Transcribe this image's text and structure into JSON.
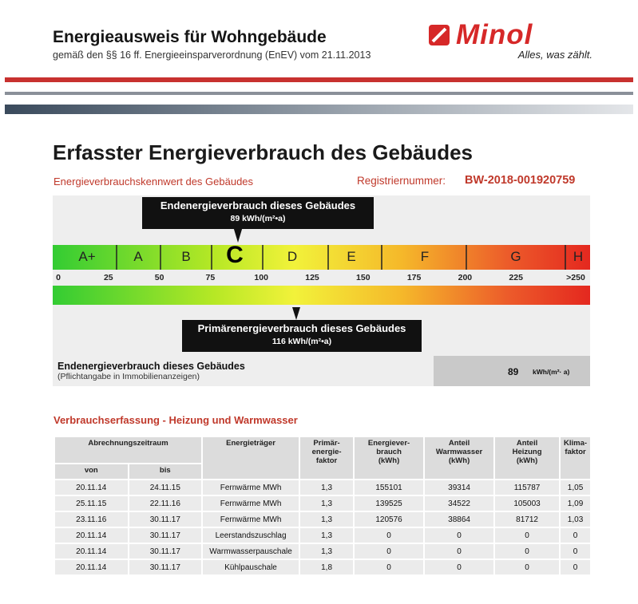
{
  "header": {
    "title": "Energieausweis für Wohngebäude",
    "subtitle": "gemäß den §§ 16 ff. Energieeinsparverordnung (EnEV) vom 21.11.2013"
  },
  "logo": {
    "wordmark": "Minol",
    "slogan": "Alles, was zählt.",
    "color": "#d62828"
  },
  "section": {
    "title": "Erfasster Energieverbrauch des Gebäudes",
    "kennwert_label": "Energieverbrauchskennwert des Gebäudes",
    "registration_label": "Registriernummer:",
    "registration_number": "BW-2018-001920759"
  },
  "scale": {
    "min": 0,
    "max": 250,
    "grades": [
      {
        "label": "A+",
        "from": 0,
        "to": 30
      },
      {
        "label": "A",
        "from": 30,
        "to": 50
      },
      {
        "label": "B",
        "from": 50,
        "to": 75
      },
      {
        "label": "C",
        "from": 75,
        "to": 100
      },
      {
        "label": "D",
        "from": 100,
        "to": 130
      },
      {
        "label": "E",
        "from": 130,
        "to": 160
      },
      {
        "label": "F",
        "from": 160,
        "to": 200
      },
      {
        "label": "G",
        "from": 200,
        "to": 250
      },
      {
        "label": "H",
        "from": 250,
        "to": 260
      }
    ],
    "ticks": [
      "0",
      "25",
      "50",
      "75",
      "100",
      "125",
      "150",
      "175",
      "200",
      "225",
      ">250"
    ],
    "current_grade": "C"
  },
  "endenergie": {
    "title": "Endenergieverbrauch dieses Gebäudes",
    "value_text": "89 kWh/(m²•a)",
    "value": 89
  },
  "primaerenergie": {
    "title": "Primärenergieverbrauch dieses Gebäudes",
    "value_text": "116 kWh/(m²•a)",
    "value": 116
  },
  "summary": {
    "label": "Endenergieverbrauch dieses Gebäudes",
    "sublabel": "(Pflichtangabe in Immobilienanzeigen)",
    "value": "89",
    "unit": "kWh/(m²· a)"
  },
  "table": {
    "title": "Verbrauchserfassung - Heizung und Warmwasser",
    "headers": {
      "period": "Abrechnungszeitraum",
      "von": "von",
      "bis": "bis",
      "energietraeger": "Energieträger",
      "faktor": "Primär-\nenergie-\nfaktor",
      "verbrauch": "Energiever-\nbrauch\n(kWh)",
      "warmwasser": "Anteil\nWarmwasser\n(kWh)",
      "heizung": "Anteil\nHeizung\n(kWh)",
      "klima": "Klima-\nfaktor"
    },
    "rows": [
      [
        "20.11.14",
        "24.11.15",
        "Fernwärme MWh",
        "1,3",
        "155101",
        "39314",
        "115787",
        "1,05"
      ],
      [
        "25.11.15",
        "22.11.16",
        "Fernwärme MWh",
        "1,3",
        "139525",
        "34522",
        "105003",
        "1,09"
      ],
      [
        "23.11.16",
        "30.11.17",
        "Fernwärme MWh",
        "1,3",
        "120576",
        "38864",
        "81712",
        "1,03"
      ],
      [
        "20.11.14",
        "30.11.17",
        "Leerstandszuschlag",
        "1,3",
        "0",
        "0",
        "0",
        "0"
      ],
      [
        "20.11.14",
        "30.11.17",
        "Warmwasserpauschale",
        "1,3",
        "0",
        "0",
        "0",
        "0"
      ],
      [
        "20.11.14",
        "30.11.17",
        "Kühlpauschale",
        "1,8",
        "0",
        "0",
        "0",
        "0"
      ]
    ]
  }
}
